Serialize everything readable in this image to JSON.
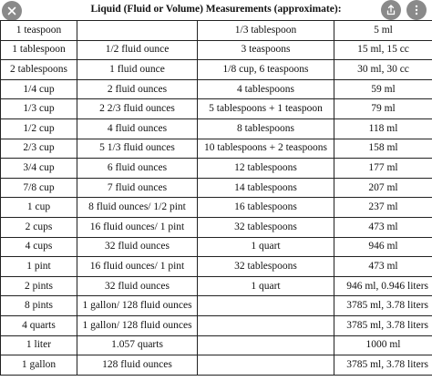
{
  "title": "Liquid (Fluid or Volume) Measurements (approximate):",
  "chrome": {
    "close_icon": "close-icon",
    "share_icon": "share-icon",
    "more_icon": "more-icon"
  },
  "rows": [
    [
      "1 teaspoon",
      "",
      "1/3 tablespoon",
      "5 ml"
    ],
    [
      "1 tablespoon",
      "1/2 fluid ounce",
      "3 teaspoons",
      "15 ml, 15 cc"
    ],
    [
      "2 tablespoons",
      "1 fluid ounce",
      "1/8 cup, 6 teaspoons",
      "30 ml, 30 cc"
    ],
    [
      "1/4 cup",
      "2 fluid ounces",
      "4 tablespoons",
      "59 ml"
    ],
    [
      "1/3 cup",
      "2 2/3 fluid ounces",
      "5 tablespoons + 1 teaspoon",
      "79 ml"
    ],
    [
      "1/2 cup",
      "4 fluid ounces",
      "8 tablespoons",
      "118 ml"
    ],
    [
      "2/3 cup",
      "5 1/3 fluid ounces",
      "10 tablespoons + 2 teaspoons",
      "158 ml"
    ],
    [
      "3/4 cup",
      "6 fluid ounces",
      "12 tablespoons",
      "177 ml"
    ],
    [
      "7/8 cup",
      "7 fluid ounces",
      "14 tablespoons",
      "207 ml"
    ],
    [
      "1 cup",
      "8 fluid ounces/ 1/2 pint",
      "16 tablespoons",
      "237 ml"
    ],
    [
      "2 cups",
      "16 fluid ounces/ 1 pint",
      "32 tablespoons",
      "473 ml"
    ],
    [
      "4 cups",
      "32 fluid ounces",
      "1 quart",
      "946 ml"
    ],
    [
      "1 pint",
      "16 fluid ounces/ 1 pint",
      "32 tablespoons",
      "473 ml"
    ],
    [
      "2 pints",
      "32 fluid ounces",
      "1 quart",
      "946 ml, 0.946 liters"
    ],
    [
      "8 pints",
      "1 gallon/ 128 fluid ounces",
      "",
      "3785 ml, 3.78 liters"
    ],
    [
      "4 quarts",
      "1 gallon/ 128 fluid ounces",
      "",
      "3785 ml, 3.78 liters"
    ],
    [
      "1 liter",
      "1.057 quarts",
      "",
      "1000 ml"
    ],
    [
      "1 gallon",
      "128 fluid ounces",
      "",
      "3785 ml, 3.78 liters"
    ]
  ]
}
